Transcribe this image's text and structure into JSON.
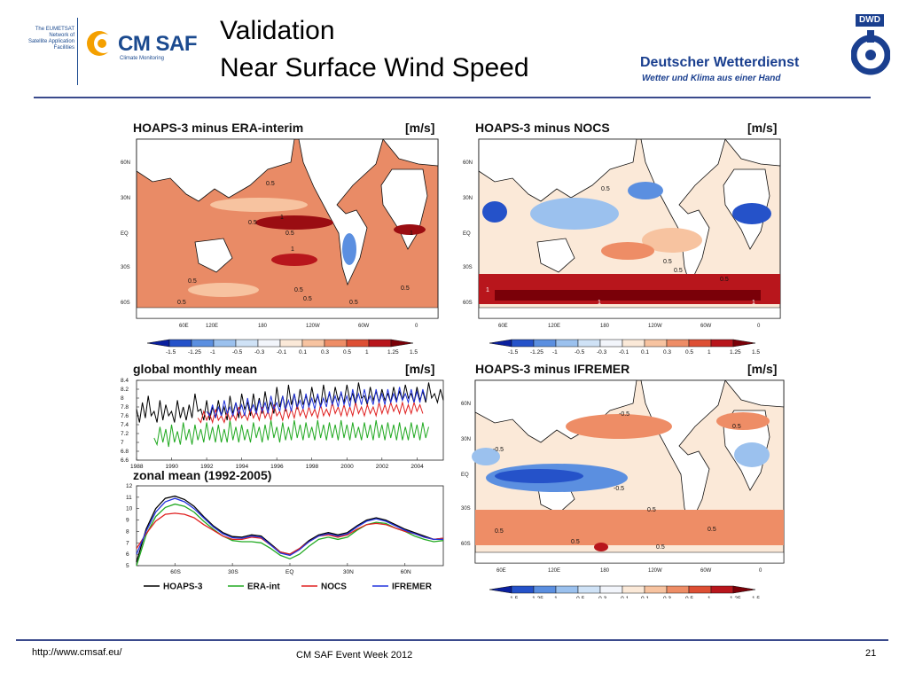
{
  "header": {
    "eumetsat_lines": [
      "The EUMETSAT",
      "Network of",
      "Satellite Application",
      "Facilities"
    ],
    "cmsaf_logo": "CM SAF",
    "cmsaf_tagline": "Climate Monitoring",
    "title_line1": "Validation",
    "title_line2": "Near Surface Wind Speed",
    "dwd_name": "Deutscher Wetterdienst",
    "dwd_tagline": "Wetter und Klima aus einer Hand",
    "dwd_badge": "DWD"
  },
  "colors": {
    "rule": "#3a4a8c",
    "title": "#000000",
    "cmsaf_blue": "#1b4a8f",
    "cmsaf_orange": "#f4a000",
    "dwd_blue": "#1a3f8f"
  },
  "maps": [
    {
      "title": "HOAPS-3 minus ERA-interim",
      "unit": "[m/s]",
      "lat_labels": [
        "60N",
        "30N",
        "EQ",
        "30S",
        "60S"
      ],
      "lon_labels": [
        "60E",
        "120E",
        "180",
        "120W",
        "60W",
        "0"
      ],
      "contour_labels": [
        "0.5",
        "0.5",
        "1",
        "0.5",
        "1",
        "1",
        "0.5",
        "0.5",
        "0.5",
        "0.5",
        "0.5",
        "0.5"
      ]
    },
    {
      "title": "HOAPS-3 minus NOCS",
      "unit": "[m/s]",
      "lat_labels": [
        "60N",
        "30N",
        "EQ",
        "30S",
        "60S"
      ],
      "lon_labels": [
        "60E",
        "120E",
        "180",
        "120W",
        "60W",
        "0"
      ],
      "contour_labels": [
        "0.5",
        "0.5",
        "1",
        "1",
        "1",
        "0.5",
        "0.5"
      ]
    },
    {
      "title": "HOAPS-3 minus IFREMER",
      "unit": "[m/s]",
      "lat_labels": [
        "60N",
        "30N",
        "EQ",
        "30S",
        "60S"
      ],
      "lon_labels": [
        "60E",
        "120E",
        "180",
        "120W",
        "60W",
        "0"
      ],
      "contour_labels": [
        "-0.5",
        "-0.5",
        "-0.5",
        "0.5",
        "0.5",
        "0.5",
        "0.5",
        "0.5",
        "0.5"
      ]
    }
  ],
  "colorbar": {
    "ticks": [
      "-1.5",
      "-1.25",
      "-1",
      "-0.5",
      "-0.3",
      "-0.1",
      "0.1",
      "0.3",
      "0.5",
      "1",
      "1.25",
      "1.5"
    ],
    "colors": [
      "#0a1f9e",
      "#2552c9",
      "#5b8fe0",
      "#9bc1ee",
      "#cfe2f6",
      "#f2f5fb",
      "#fbe9d8",
      "#f7c3a0",
      "#ee8d66",
      "#dd4f34",
      "#b8161c",
      "#7a0008"
    ]
  },
  "chart_data": [
    {
      "type": "line",
      "title": "global monthly mean",
      "unit": "[m/s]",
      "x_ticks": [
        "1988",
        "1990",
        "1992",
        "1994",
        "1996",
        "1998",
        "2000",
        "2002",
        "2004"
      ],
      "y_ticks": [
        "6.6",
        "6.8",
        "7",
        "7.2",
        "7.4",
        "7.6",
        "7.8",
        "8",
        "8.2",
        "8.4"
      ],
      "ylim": [
        6.6,
        8.4
      ],
      "xlim": [
        1988,
        2005.5
      ],
      "series": [
        {
          "name": "HOAPS-3",
          "color": "#000000",
          "start": 1988,
          "values": [
            7.75,
            7.45,
            7.9,
            7.55,
            8.05,
            7.6,
            7.7,
            7.45,
            7.95,
            7.5,
            7.85,
            7.6,
            7.7,
            7.45,
            7.95,
            7.55,
            7.8,
            7.5,
            7.85,
            7.55,
            8.1,
            7.7,
            7.75,
            7.5,
            7.95,
            7.5,
            7.8,
            7.55,
            7.95,
            7.6,
            7.8,
            7.5,
            8.05,
            7.65,
            7.9,
            7.55,
            8.1,
            7.75,
            7.9,
            7.6,
            8.1,
            7.7,
            8.0,
            7.65,
            8.15,
            7.75,
            7.9,
            7.65,
            8.25,
            7.8,
            8.05,
            7.7,
            8.3,
            7.85,
            8.1,
            7.75,
            8.2,
            7.85,
            8.05,
            7.8,
            8.25,
            7.9,
            8.05,
            7.8,
            8.3,
            7.9,
            8.1,
            7.85,
            8.25,
            7.95,
            8.1,
            7.9,
            8.3,
            7.95,
            8.1,
            7.85,
            8.35,
            8.0,
            8.05,
            7.85,
            8.25,
            7.95,
            8.15,
            7.9,
            8.2,
            7.95,
            8.1,
            7.9,
            8.25,
            7.95,
            8.15,
            7.95,
            8.3,
            8.0,
            8.1,
            7.9,
            8.25,
            7.95,
            8.15,
            7.9,
            8.35,
            8.0,
            8.1,
            7.9,
            8.2,
            7.95
          ]
        },
        {
          "name": "ERA-int",
          "color": "#22aa22",
          "start": 1989,
          "values": [
            7.1,
            6.95,
            7.35,
            7.0,
            7.3,
            6.9,
            7.4,
            7.0,
            7.25,
            6.95,
            7.45,
            7.05,
            7.3,
            6.95,
            7.4,
            7.05,
            7.3,
            7.0,
            7.45,
            7.05,
            7.35,
            7.0,
            7.4,
            7.0,
            7.3,
            7.0,
            7.5,
            7.05,
            7.35,
            7.0,
            7.4,
            7.05,
            7.3,
            7.0,
            7.45,
            7.1,
            7.35,
            7.0,
            7.4,
            7.05,
            7.5,
            7.1,
            7.35,
            7.0,
            7.45,
            7.05,
            7.35,
            7.05,
            7.5,
            7.1,
            7.4,
            7.05,
            7.45,
            7.1,
            7.35,
            7.05,
            7.5,
            7.1,
            7.4,
            7.05,
            7.45,
            7.1,
            7.4,
            7.05,
            7.5,
            7.1,
            7.4,
            7.05,
            7.45,
            7.1,
            7.35,
            7.05,
            7.45,
            7.1,
            7.4,
            7.05,
            7.5,
            7.1,
            7.4,
            7.05,
            7.45,
            7.1,
            7.4,
            7.05,
            7.45,
            7.05,
            7.35,
            7.05,
            7.45,
            7.1,
            7.4,
            7.05,
            7.45,
            7.1,
            7.35
          ]
        },
        {
          "name": "NOCS",
          "color": "#e02020",
          "start": 1991.5,
          "values": [
            7.55,
            7.45,
            7.7,
            7.5,
            7.65,
            7.45,
            7.75,
            7.5,
            7.6,
            7.45,
            7.7,
            7.5,
            7.65,
            7.5,
            7.8,
            7.55,
            7.65,
            7.5,
            7.75,
            7.55,
            7.7,
            7.5,
            7.8,
            7.55,
            7.7,
            7.5,
            7.85,
            7.6,
            7.7,
            7.5,
            7.8,
            7.55,
            7.75,
            7.55,
            7.85,
            7.6,
            7.75,
            7.55,
            7.8,
            7.6,
            7.75,
            7.55,
            7.85,
            7.6,
            7.75,
            7.6,
            7.9,
            7.65,
            7.8,
            7.6,
            7.85,
            7.6,
            7.8,
            7.6,
            7.9,
            7.65,
            7.8,
            7.6,
            7.85,
            7.65,
            7.8,
            7.6,
            7.9,
            7.65,
            7.85,
            7.65,
            7.9,
            7.7,
            7.85,
            7.65,
            7.9,
            7.65,
            7.85,
            7.65,
            7.9,
            7.7,
            7.85,
            7.65
          ]
        },
        {
          "name": "IFREMER",
          "color": "#2233dd",
          "start": 1992,
          "values": [
            7.7,
            7.6,
            7.85,
            7.55,
            7.8,
            7.6,
            7.95,
            7.65,
            7.8,
            7.6,
            7.9,
            7.65,
            7.85,
            7.6,
            8.0,
            7.7,
            7.85,
            7.65,
            7.95,
            7.7,
            7.9,
            7.65,
            8.05,
            7.75,
            7.9,
            7.7,
            8.05,
            7.75,
            7.95,
            7.7,
            8.1,
            7.8,
            7.95,
            7.75,
            8.1,
            7.8,
            8.0,
            7.75,
            8.1,
            7.8,
            8.0,
            7.8,
            8.15,
            7.85,
            8.05,
            7.8,
            8.15,
            7.85,
            8.05,
            7.8,
            8.2,
            7.9,
            8.1,
            7.85,
            8.2,
            7.9,
            8.05,
            7.85,
            8.2,
            7.9,
            8.1,
            7.85,
            8.2,
            7.9,
            8.1,
            7.9,
            8.25,
            7.95,
            8.1,
            7.9,
            8.2,
            7.9,
            8.15,
            7.9,
            8.2,
            7.95
          ]
        }
      ]
    },
    {
      "type": "line",
      "title": "zonal mean (1992-2005)",
      "x_ticks": [
        "60S",
        "30S",
        "EQ",
        "30N",
        "60N"
      ],
      "y_ticks": [
        "5",
        "6",
        "7",
        "8",
        "9",
        "10",
        "11",
        "12"
      ],
      "ylim": [
        5,
        12
      ],
      "xlim": [
        -80,
        80
      ],
      "x": [
        -80,
        -75,
        -70,
        -65,
        -60,
        -55,
        -50,
        -45,
        -40,
        -35,
        -30,
        -25,
        -20,
        -15,
        -10,
        -5,
        0,
        5,
        10,
        15,
        20,
        25,
        30,
        35,
        40,
        45,
        50,
        55,
        60,
        65,
        70,
        75,
        80
      ],
      "series": [
        {
          "name": "HOAPS-3",
          "color": "#000000",
          "values": [
            5.3,
            8.2,
            10.0,
            10.9,
            11.1,
            10.8,
            10.2,
            9.3,
            8.5,
            7.9,
            7.55,
            7.5,
            7.7,
            7.6,
            6.9,
            6.2,
            6.0,
            6.5,
            7.2,
            7.7,
            7.9,
            7.7,
            7.9,
            8.5,
            9.0,
            9.2,
            9.0,
            8.6,
            8.2,
            7.9,
            7.6,
            7.3,
            7.4
          ]
        },
        {
          "name": "ERA-int",
          "color": "#22aa22",
          "values": [
            5.0,
            7.7,
            9.3,
            10.1,
            10.4,
            10.2,
            9.7,
            8.9,
            8.2,
            7.6,
            7.2,
            7.1,
            7.1,
            7.0,
            6.5,
            5.9,
            5.6,
            6.0,
            6.7,
            7.3,
            7.5,
            7.3,
            7.5,
            8.1,
            8.6,
            8.8,
            8.7,
            8.3,
            8.0,
            7.6,
            7.3,
            7.1,
            7.2
          ]
        },
        {
          "name": "NOCS",
          "color": "#e02020",
          "values": [
            6.5,
            7.8,
            8.9,
            9.5,
            9.6,
            9.5,
            9.2,
            8.6,
            8.1,
            7.6,
            7.3,
            7.3,
            7.5,
            7.4,
            6.8,
            6.2,
            6.0,
            6.5,
            7.1,
            7.6,
            7.7,
            7.5,
            7.7,
            8.2,
            8.6,
            8.7,
            8.6,
            8.3,
            8.0,
            7.8,
            7.5,
            7.3,
            7.4
          ]
        },
        {
          "name": "IFREMER",
          "color": "#2233dd",
          "values": [
            6.0,
            8.0,
            9.7,
            10.6,
            10.9,
            10.6,
            10.0,
            9.2,
            8.4,
            7.8,
            7.45,
            7.4,
            7.6,
            7.5,
            6.8,
            6.1,
            5.9,
            6.4,
            7.1,
            7.6,
            7.8,
            7.6,
            7.8,
            8.4,
            8.9,
            9.1,
            8.9,
            8.5,
            8.1,
            7.8,
            7.5,
            7.3,
            7.3
          ]
        }
      ]
    }
  ],
  "legend": [
    "HOAPS-3",
    "ERA-int",
    "NOCS",
    "IFREMER"
  ],
  "footer": {
    "url": "http://www.cmsaf.eu/",
    "event": "CM SAF Event Week 2012",
    "page_number": "21"
  }
}
